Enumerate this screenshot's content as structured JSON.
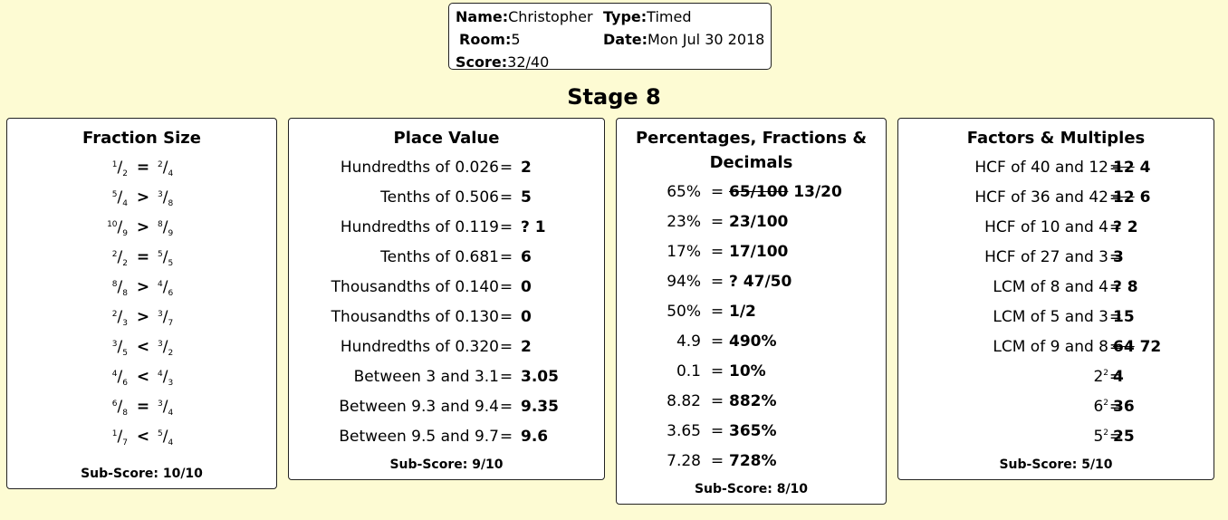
{
  "header": {
    "name_label": "Name:",
    "name_value": "Christopher",
    "type_label": "Type:",
    "type_value": "Timed",
    "room_label": "Room:",
    "room_value": "5",
    "date_label": "Date:",
    "date_value": "Mon Jul 30 2018",
    "score_label": "Score:",
    "score_value": "32/40"
  },
  "stage": "Stage 8",
  "fraction_size": {
    "title": "Fraction Size",
    "rows": [
      {
        "a_num": "1",
        "a_den": "2",
        "op": "=",
        "b_num": "2",
        "b_den": "4"
      },
      {
        "a_num": "5",
        "a_den": "4",
        "op": ">",
        "b_num": "3",
        "b_den": "8"
      },
      {
        "a_num": "10",
        "a_den": "9",
        "op": ">",
        "b_num": "8",
        "b_den": "9"
      },
      {
        "a_num": "2",
        "a_den": "2",
        "op": "=",
        "b_num": "5",
        "b_den": "5"
      },
      {
        "a_num": "8",
        "a_den": "8",
        "op": ">",
        "b_num": "4",
        "b_den": "6"
      },
      {
        "a_num": "2",
        "a_den": "3",
        "op": ">",
        "b_num": "3",
        "b_den": "7"
      },
      {
        "a_num": "3",
        "a_den": "5",
        "op": "<",
        "b_num": "3",
        "b_den": "2"
      },
      {
        "a_num": "4",
        "a_den": "6",
        "op": "<",
        "b_num": "4",
        "b_den": "3"
      },
      {
        "a_num": "6",
        "a_den": "8",
        "op": "=",
        "b_num": "3",
        "b_den": "4"
      },
      {
        "a_num": "1",
        "a_den": "7",
        "op": "<",
        "b_num": "5",
        "b_den": "4"
      }
    ],
    "subscore": "Sub-Score: 10/10"
  },
  "place_value": {
    "title": "Place Value",
    "rows": [
      {
        "q": "Hundredths of 0.026",
        "op": "=",
        "wrong": "",
        "a": "2"
      },
      {
        "q": "Tenths of 0.506",
        "op": "=",
        "wrong": "",
        "a": "5"
      },
      {
        "q": "Hundredths of 0.119",
        "op": "=",
        "wrong": "?",
        "a": "1"
      },
      {
        "q": "Tenths of 0.681",
        "op": "=",
        "wrong": "",
        "a": "6"
      },
      {
        "q": "Thousandths of 0.140",
        "op": "=",
        "wrong": "",
        "a": "0"
      },
      {
        "q": "Thousandths of 0.130",
        "op": "=",
        "wrong": "",
        "a": "0"
      },
      {
        "q": "Hundredths of 0.320",
        "op": "=",
        "wrong": "",
        "a": "2"
      },
      {
        "q": "Between 3 and 3.1",
        "op": "=",
        "wrong": "",
        "a": "3.05"
      },
      {
        "q": "Between 9.3 and 9.4",
        "op": "=",
        "wrong": "",
        "a": "9.35"
      },
      {
        "q": "Between 9.5 and 9.7",
        "op": "=",
        "wrong": "",
        "a": "9.6"
      }
    ],
    "subscore": "Sub-Score: 9/10"
  },
  "percentages": {
    "title_line1": "Percentages, Fractions &",
    "title_line2": "Decimals",
    "rows": [
      {
        "q": "65%",
        "op": "=",
        "wrong": "65/100",
        "a": "13/20"
      },
      {
        "q": "23%",
        "op": "=",
        "wrong": "",
        "a": "23/100"
      },
      {
        "q": "17%",
        "op": "=",
        "wrong": "",
        "a": "17/100"
      },
      {
        "q": "94%",
        "op": "=",
        "wrong": "?",
        "a": "47/50"
      },
      {
        "q": "50%",
        "op": "=",
        "wrong": "",
        "a": "1/2"
      },
      {
        "q": "4.9",
        "op": "=",
        "wrong": "",
        "a": "490%"
      },
      {
        "q": "0.1",
        "op": "=",
        "wrong": "",
        "a": "10%"
      },
      {
        "q": "8.82",
        "op": "=",
        "wrong": "",
        "a": "882%"
      },
      {
        "q": "3.65",
        "op": "=",
        "wrong": "",
        "a": "365%"
      },
      {
        "q": "7.28",
        "op": "=",
        "wrong": "",
        "a": "728%"
      }
    ],
    "subscore": "Sub-Score: 8/10"
  },
  "factors": {
    "title": "Factors & Multiples",
    "rows": [
      {
        "q": "HCF of 40 and 12",
        "exp": "",
        "op": "=",
        "wrong": "12",
        "a": "4"
      },
      {
        "q": "HCF of 36 and 42",
        "exp": "",
        "op": "=",
        "wrong": "12",
        "a": "6"
      },
      {
        "q": "HCF of 10 and 4",
        "exp": "",
        "op": "=",
        "wrong": "?",
        "a": "2"
      },
      {
        "q": "HCF of 27 and 3",
        "exp": "",
        "op": "=",
        "wrong": "",
        "a": "3"
      },
      {
        "q": "LCM of 8 and 4",
        "exp": "",
        "op": "=",
        "wrong": "?",
        "a": "8"
      },
      {
        "q": "LCM of 5 and 3",
        "exp": "",
        "op": "=",
        "wrong": "",
        "a": "15"
      },
      {
        "q": "LCM of 9 and 8",
        "exp": "",
        "op": "=",
        "wrong": "64",
        "a": "72"
      },
      {
        "q": "2",
        "exp": "2",
        "op": "=",
        "wrong": "",
        "a": "4"
      },
      {
        "q": "6",
        "exp": "2",
        "op": "=",
        "wrong": "",
        "a": "36"
      },
      {
        "q": "5",
        "exp": "2",
        "op": "=",
        "wrong": "",
        "a": "25"
      }
    ],
    "subscore": "Sub-Score: 5/10"
  }
}
